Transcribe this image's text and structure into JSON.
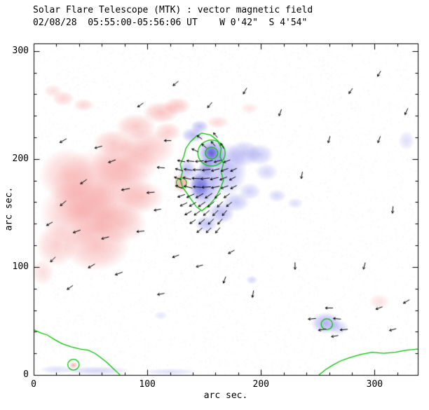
{
  "title": "Solar Flare Telescope (MTK) : vector magnetic field",
  "subtitle": "02/08/28  05:55:00-05:56:06 UT    W 0'42\"  S 4'54\"",
  "axes": {
    "xlabel": "arc sec.",
    "ylabel": "arc sec.",
    "xticks": [
      0,
      100,
      200,
      300
    ],
    "yticks": [
      0,
      100,
      200,
      300
    ],
    "xrange": [
      0,
      338
    ],
    "yrange": [
      0,
      307
    ],
    "minor_tick_step": 20
  },
  "colors": {
    "red_flux": "#f26c6c",
    "blue_flux": "#6060e8",
    "deep_blue_flux": "#2828c3",
    "contour_green": "#00c000",
    "vector_black": "#000000",
    "frame_black": "#000000",
    "background": "#ffffff"
  },
  "chart_data": {
    "type": "heatmap",
    "description": "Vector magnetogram map in arc seconds: diffuse red and blue regions are opposite magnetic polarities, green lines are flux contours, short black arrows are transverse magnetic field vectors.",
    "blobs": [
      [
        60,
        170,
        45,
        40,
        0.4,
        "red"
      ],
      [
        40,
        150,
        35,
        30,
        0.4,
        "red"
      ],
      [
        80,
        195,
        30,
        22,
        0.38,
        "red"
      ],
      [
        100,
        210,
        25,
        18,
        0.36,
        "red"
      ],
      [
        55,
        120,
        30,
        24,
        0.4,
        "red"
      ],
      [
        30,
        185,
        25,
        25,
        0.34,
        "red"
      ],
      [
        75,
        140,
        25,
        18,
        0.36,
        "red"
      ],
      [
        20,
        120,
        18,
        20,
        0.32,
        "red"
      ],
      [
        95,
        165,
        20,
        15,
        0.32,
        "red"
      ],
      [
        90,
        230,
        18,
        12,
        0.36,
        "red"
      ],
      [
        70,
        215,
        18,
        12,
        0.34,
        "red"
      ],
      [
        112,
        243,
        16,
        10,
        0.4,
        "red"
      ],
      [
        126,
        249,
        12,
        8,
        0.38,
        "red"
      ],
      [
        118,
        225,
        12,
        9,
        0.32,
        "red"
      ],
      [
        26,
        256,
        10,
        7,
        0.28,
        "red"
      ],
      [
        44,
        250,
        9,
        6,
        0.28,
        "red"
      ],
      [
        17,
        263,
        8,
        6,
        0.22,
        "red"
      ],
      [
        162,
        234,
        10,
        6,
        0.26,
        "red"
      ],
      [
        190,
        247,
        8,
        5,
        0.18,
        "red"
      ],
      [
        130,
        178,
        7,
        9,
        0.6,
        "red"
      ],
      [
        35,
        9,
        3.5,
        3,
        0.55,
        "red"
      ],
      [
        304,
        68,
        9,
        7,
        0.2,
        "red"
      ],
      [
        8,
        95,
        10,
        12,
        0.22,
        "red"
      ],
      [
        157,
        205,
        13,
        14,
        0.65,
        "blue"
      ],
      [
        150,
        175,
        14,
        20,
        0.55,
        "blue"
      ],
      [
        170,
        190,
        18,
        25,
        0.42,
        "blue"
      ],
      [
        146,
        230,
        8,
        6,
        0.4,
        "blue"
      ],
      [
        140,
        222,
        10,
        7,
        0.42,
        "blue"
      ],
      [
        135,
        190,
        8,
        10,
        0.42,
        "blue"
      ],
      [
        185,
        205,
        15,
        12,
        0.38,
        "blue"
      ],
      [
        199,
        204,
        12,
        10,
        0.32,
        "blue"
      ],
      [
        205,
        188,
        10,
        8,
        0.26,
        "blue"
      ],
      [
        165,
        150,
        12,
        10,
        0.42,
        "blue"
      ],
      [
        178,
        160,
        12,
        9,
        0.35,
        "blue"
      ],
      [
        190,
        170,
        10,
        8,
        0.28,
        "blue"
      ],
      [
        152,
        140,
        10,
        8,
        0.38,
        "blue"
      ],
      [
        214,
        166,
        8,
        6,
        0.25,
        "blue"
      ],
      [
        230,
        159,
        7,
        5,
        0.2,
        "blue"
      ],
      [
        257,
        48,
        13,
        10,
        0.48,
        "blue"
      ],
      [
        268,
        44,
        9,
        7,
        0.28,
        "blue"
      ],
      [
        192,
        88,
        5,
        4,
        0.25,
        "blue"
      ],
      [
        112,
        55,
        6,
        4,
        0.16,
        "blue"
      ],
      [
        328,
        217,
        7,
        9,
        0.2,
        "blue"
      ],
      [
        55,
        4,
        30,
        4,
        0.26,
        "blue"
      ],
      [
        120,
        3,
        25,
        3,
        0.2,
        "blue"
      ],
      [
        20,
        5,
        15,
        4,
        0.2,
        "blue"
      ],
      [
        156,
        206,
        6,
        7,
        0.5,
        "deep"
      ],
      [
        146,
        175,
        8,
        12,
        0.45,
        "deep"
      ],
      [
        152,
        192,
        7,
        9,
        0.4,
        "deep"
      ]
    ],
    "contour_circles": [
      [
        156.5,
        205.5,
        5.5
      ],
      [
        156.5,
        205.5,
        12
      ],
      [
        130,
        178,
        4.5
      ],
      [
        258,
        47,
        5
      ],
      [
        35,
        9.5,
        5
      ]
    ],
    "contour_loops": [
      [
        [
          148,
          224
        ],
        [
          156,
          222
        ],
        [
          162,
          217
        ],
        [
          165,
          210
        ],
        [
          164,
          202
        ],
        [
          167,
          196
        ],
        [
          165,
          188
        ],
        [
          167,
          180
        ],
        [
          164,
          172
        ],
        [
          160,
          164
        ],
        [
          154,
          157
        ],
        [
          148,
          152
        ],
        [
          143,
          156
        ],
        [
          139,
          162
        ],
        [
          135,
          168
        ],
        [
          131,
          174
        ],
        [
          129,
          181
        ],
        [
          131,
          188
        ],
        [
          129,
          195
        ],
        [
          132,
          202
        ],
        [
          134,
          210
        ],
        [
          138,
          216
        ],
        [
          143,
          221
        ]
      ]
    ],
    "contour_lines": [
      [
        [
          0,
          42
        ],
        [
          6,
          39
        ],
        [
          12,
          37
        ],
        [
          18,
          33
        ],
        [
          25,
          29
        ],
        [
          33,
          26
        ],
        [
          41,
          24
        ],
        [
          48,
          23
        ],
        [
          54,
          20
        ],
        [
          59,
          16
        ],
        [
          64,
          12
        ],
        [
          69,
          7
        ],
        [
          73,
          3
        ],
        [
          76,
          0
        ]
      ],
      [
        [
          251,
          0
        ],
        [
          257,
          5
        ],
        [
          263,
          9
        ],
        [
          270,
          13
        ],
        [
          278,
          16
        ],
        [
          288,
          19
        ],
        [
          298,
          21
        ],
        [
          308,
          20
        ],
        [
          318,
          21
        ],
        [
          328,
          23
        ],
        [
          338,
          24
        ]
      ]
    ],
    "vectors": [
      [
        130,
        198,
        170,
        11
      ],
      [
        138,
        198,
        175,
        11
      ],
      [
        146,
        198,
        185,
        12
      ],
      [
        154,
        198,
        190,
        12
      ],
      [
        162,
        198,
        195,
        11
      ],
      [
        170,
        198,
        200,
        10
      ],
      [
        128,
        190,
        165,
        11
      ],
      [
        136,
        190,
        172,
        12
      ],
      [
        144,
        190,
        180,
        12
      ],
      [
        152,
        190,
        188,
        12
      ],
      [
        160,
        190,
        195,
        12
      ],
      [
        168,
        190,
        200,
        11
      ],
      [
        176,
        190,
        205,
        10
      ],
      [
        127,
        182,
        160,
        11
      ],
      [
        135,
        182,
        168,
        12
      ],
      [
        143,
        182,
        178,
        12
      ],
      [
        151,
        182,
        186,
        13
      ],
      [
        159,
        182,
        194,
        12
      ],
      [
        167,
        182,
        202,
        11
      ],
      [
        175,
        182,
        208,
        10
      ],
      [
        128,
        174,
        158,
        11
      ],
      [
        136,
        174,
        166,
        12
      ],
      [
        144,
        174,
        176,
        12
      ],
      [
        152,
        174,
        184,
        13
      ],
      [
        160,
        174,
        192,
        12
      ],
      [
        168,
        174,
        200,
        11
      ],
      [
        176,
        174,
        208,
        10
      ],
      [
        130,
        166,
        200,
        11
      ],
      [
        138,
        166,
        205,
        12
      ],
      [
        146,
        166,
        210,
        12
      ],
      [
        154,
        166,
        215,
        12
      ],
      [
        162,
        166,
        220,
        11
      ],
      [
        170,
        166,
        215,
        10
      ],
      [
        132,
        158,
        205,
        11
      ],
      [
        140,
        158,
        210,
        11
      ],
      [
        148,
        158,
        215,
        12
      ],
      [
        156,
        158,
        220,
        12
      ],
      [
        164,
        158,
        225,
        11
      ],
      [
        172,
        158,
        220,
        10
      ],
      [
        136,
        150,
        210,
        11
      ],
      [
        144,
        150,
        215,
        11
      ],
      [
        152,
        150,
        220,
        11
      ],
      [
        160,
        150,
        225,
        11
      ],
      [
        168,
        150,
        230,
        10
      ],
      [
        140,
        142,
        215,
        10
      ],
      [
        148,
        142,
        220,
        11
      ],
      [
        156,
        142,
        225,
        11
      ],
      [
        164,
        142,
        230,
        10
      ],
      [
        146,
        134,
        220,
        10
      ],
      [
        154,
        134,
        225,
        10
      ],
      [
        162,
        134,
        230,
        10
      ],
      [
        142,
        208,
        155,
        10
      ],
      [
        150,
        212,
        140,
        9
      ],
      [
        158,
        214,
        130,
        9
      ],
      [
        166,
        212,
        120,
        9
      ],
      [
        146,
        220,
        145,
        9
      ],
      [
        160,
        222,
        130,
        9
      ],
      [
        26,
        217,
        210,
        11
      ],
      [
        57,
        211,
        195,
        11
      ],
      [
        69,
        198,
        200,
        11
      ],
      [
        44,
        179,
        215,
        11
      ],
      [
        81,
        172,
        190,
        12
      ],
      [
        26,
        159,
        220,
        11
      ],
      [
        14,
        140,
        210,
        10
      ],
      [
        38,
        133,
        200,
        11
      ],
      [
        63,
        127,
        195,
        11
      ],
      [
        94,
        133,
        185,
        11
      ],
      [
        17,
        107,
        225,
        10
      ],
      [
        51,
        101,
        210,
        11
      ],
      [
        75,
        94,
        200,
        11
      ],
      [
        32,
        81,
        215,
        10
      ],
      [
        112,
        75,
        190,
        10
      ],
      [
        125,
        110,
        200,
        10
      ],
      [
        146,
        101,
        195,
        10
      ],
      [
        174,
        114,
        210,
        10
      ],
      [
        118,
        217,
        180,
        10
      ],
      [
        112,
        192,
        175,
        11
      ],
      [
        103,
        169,
        185,
        11
      ],
      [
        109,
        153,
        190,
        10
      ],
      [
        94,
        250,
        215,
        10
      ],
      [
        125,
        270,
        220,
        10
      ],
      [
        155,
        250,
        230,
        10
      ],
      [
        186,
        263,
        240,
        10
      ],
      [
        217,
        243,
        250,
        10
      ],
      [
        279,
        263,
        235,
        9
      ],
      [
        304,
        279,
        240,
        9
      ],
      [
        168,
        88,
        250,
        10
      ],
      [
        193,
        75,
        260,
        10
      ],
      [
        230,
        101,
        270,
        10
      ],
      [
        291,
        101,
        255,
        10
      ],
      [
        316,
        153,
        265,
        10
      ],
      [
        304,
        218,
        250,
        10
      ],
      [
        328,
        244,
        245,
        10
      ],
      [
        260,
        218,
        255,
        10
      ],
      [
        236,
        185,
        260,
        10
      ],
      [
        245,
        52,
        185,
        11
      ],
      [
        254,
        42,
        190,
        11
      ],
      [
        267,
        52,
        175,
        11
      ],
      [
        260,
        62,
        180,
        11
      ],
      [
        273,
        42,
        185,
        11
      ],
      [
        265,
        36,
        190,
        10
      ],
      [
        304,
        62,
        200,
        10
      ],
      [
        328,
        68,
        210,
        10
      ],
      [
        316,
        42,
        195,
        10
      ]
    ]
  }
}
